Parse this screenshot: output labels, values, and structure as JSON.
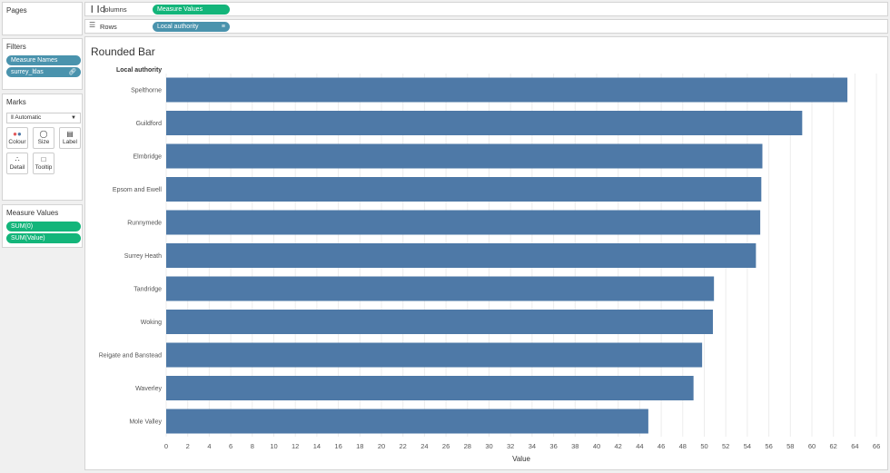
{
  "panels": {
    "pages": "Pages",
    "filters": "Filters",
    "marks": "Marks",
    "measure_values": "Measure Values"
  },
  "filters": [
    "Measure Names",
    "surrey_ltlas"
  ],
  "marks": {
    "type": "Automatic",
    "buttons": [
      {
        "label": "Colour",
        "icon": "colour-icon"
      },
      {
        "label": "Size",
        "icon": "size-icon"
      },
      {
        "label": "Label",
        "icon": "label-icon"
      },
      {
        "label": "Detail",
        "icon": "detail-icon"
      },
      {
        "label": "Tooltip",
        "icon": "tooltip-icon"
      }
    ]
  },
  "measure_values": [
    "SUM(0)",
    "SUM(Value)"
  ],
  "shelves": {
    "columns_label": "Columns",
    "columns_pill": "Measure Values",
    "rows_label": "Rows",
    "rows_pill": "Local authority"
  },
  "sheet_title": "Rounded Bar",
  "colors": {
    "bar": "#4e79a7",
    "pill_blue": "#4a93ad",
    "pill_green": "#13b57a"
  },
  "chart_data": {
    "type": "bar",
    "orientation": "horizontal",
    "row_header": "Local authority",
    "xlabel": "Value",
    "xlim": [
      0,
      67
    ],
    "xticks": [
      0,
      2,
      4,
      6,
      8,
      10,
      12,
      14,
      16,
      18,
      20,
      22,
      24,
      26,
      28,
      30,
      32,
      34,
      36,
      38,
      40,
      42,
      44,
      46,
      48,
      50,
      52,
      54,
      56,
      58,
      60,
      62,
      64,
      66
    ],
    "grid": true,
    "categories": [
      "Spelthorne",
      "Guildford",
      "Elmbridge",
      "Epsom and Ewell",
      "Runnymede",
      "Surrey Heath",
      "Tandridge",
      "Woking",
      "Reigate and Banstead",
      "Waverley",
      "Mole Valley"
    ],
    "values": [
      63.3,
      59.1,
      55.4,
      55.3,
      55.2,
      54.8,
      50.9,
      50.8,
      49.8,
      49.0,
      44.8
    ]
  }
}
